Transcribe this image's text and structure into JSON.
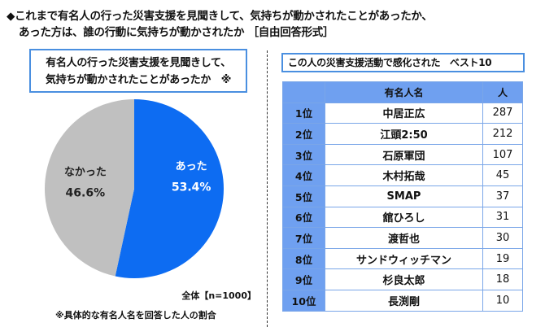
{
  "title": {
    "line1": "◆これまで有名人の行った災害支援を見聞きして、気持ちが動かされたことがあったか、",
    "line2": "あった方は、誰の行動に気持ちが動かされたか ［自由回答形式］"
  },
  "left": {
    "box_line1": "有名人の行った災害支援を見聞きして、",
    "box_line2": "気持ちが動かされたことがあったか　※",
    "sample": "全体【n=1000】",
    "note": "※具体的な有名人名を回答した人の割合"
  },
  "chart_data": {
    "type": "pie",
    "slices": [
      {
        "label": "あった",
        "value": 53.4,
        "value_label": "53.4%",
        "color": "#0d6cf2"
      },
      {
        "label": "なかった",
        "value": 46.6,
        "value_label": "46.6%",
        "color": "#c0c0c0"
      }
    ],
    "start": "12 o'clock",
    "direction": "clockwise"
  },
  "right": {
    "title": "この人の災害支援活動で感化された　ベスト10",
    "headers": [
      "",
      "有名人名",
      "人"
    ],
    "rows": [
      [
        "1位",
        "中居正広",
        "287"
      ],
      [
        "2位",
        "江頭2:50",
        "212"
      ],
      [
        "3位",
        "石原軍団",
        "107"
      ],
      [
        "4位",
        "木村拓哉",
        "45"
      ],
      [
        "5位",
        "SMAP",
        "37"
      ],
      [
        "6位",
        "舘ひろし",
        "31"
      ],
      [
        "7位",
        "渡哲也",
        "30"
      ],
      [
        "8位",
        "サンドウィッチマン",
        "19"
      ],
      [
        "9位",
        "杉良太郎",
        "18"
      ],
      [
        "10位",
        "長渕剛",
        "10"
      ]
    ]
  }
}
